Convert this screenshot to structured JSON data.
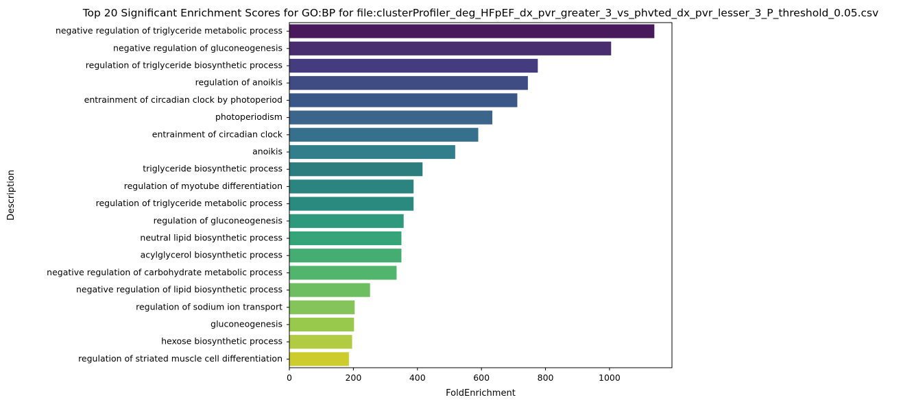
{
  "chart_data": {
    "type": "bar",
    "orientation": "horizontal",
    "title": "Top 20 Significant Enrichment Scores for GO:BP for file:clusterProfiler_deg_HFpEF_dx_pvr_greater_3_vs_phvted_dx_pvr_lesser_3_P_threshold_0.05.csv",
    "xlabel": "FoldEnrichment",
    "ylabel": "Description",
    "xlim": [
      0,
      1195
    ],
    "xticks": [
      0,
      200,
      400,
      600,
      800,
      1000
    ],
    "grid": false,
    "legend": "none",
    "colormap": "viridis",
    "categories": [
      "negative regulation of triglyceride metabolic process",
      "negative regulation of gluconeogenesis",
      "regulation of triglyceride biosynthetic process",
      "regulation of anoikis",
      "entrainment of circadian clock by photoperiod",
      "photoperiodism",
      "entrainment of circadian clock",
      "anoikis",
      "triglyceride biosynthetic process",
      "regulation of myotube differentiation",
      "regulation of triglyceride metabolic process",
      "regulation of gluconeogenesis",
      "neutral lipid biosynthetic process",
      "acylglycerol biosynthetic process",
      "negative regulation of carbohydrate metabolic process",
      "negative regulation of lipid biosynthetic process",
      "regulation of sodium ion transport",
      "gluconeogenesis",
      "hexose biosynthetic process",
      "regulation of striated muscle cell differentiation"
    ],
    "values": [
      1140,
      1005,
      776,
      745,
      712,
      634,
      590,
      518,
      416,
      388,
      388,
      357,
      350,
      350,
      335,
      252,
      204,
      202,
      196,
      186
    ],
    "colors": [
      "#481a5b",
      "#482e6f",
      "#443c7f",
      "#3f4c84",
      "#3b5787",
      "#3c658b",
      "#37708d",
      "#337e8b",
      "#2e7d7e",
      "#2c8480",
      "#2b8a7f",
      "#2e997c",
      "#35a479",
      "#46ad72",
      "#52b56d",
      "#6cbe60",
      "#84c45a",
      "#98c84c",
      "#b1cb42",
      "#cdcc2d"
    ]
  }
}
